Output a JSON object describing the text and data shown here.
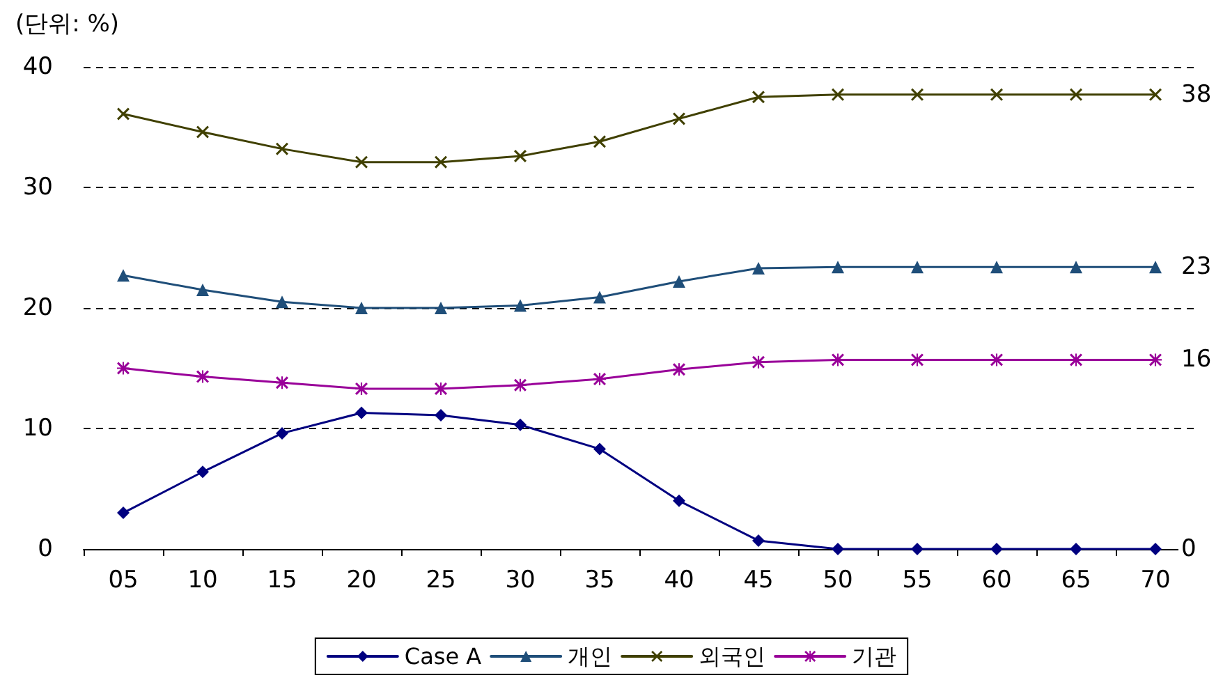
{
  "chart_data": {
    "type": "line",
    "ylabel": "(단위: %)",
    "categories": [
      "05",
      "10",
      "15",
      "20",
      "25",
      "30",
      "35",
      "40",
      "45",
      "50",
      "55",
      "60",
      "65",
      "70"
    ],
    "ylim": [
      0,
      40
    ],
    "yticks": [
      0,
      10,
      20,
      30,
      40
    ],
    "grid": "y",
    "legend": "bottom",
    "series": [
      {
        "name": "Case A",
        "color": "#000080",
        "marker": "diamond",
        "values": [
          3.0,
          6.4,
          9.6,
          11.3,
          11.1,
          10.3,
          8.3,
          4.0,
          0.7,
          0,
          0,
          0,
          0,
          0
        ],
        "value_labels": [
          null,
          null,
          null,
          null,
          null,
          null,
          null,
          null,
          null,
          null,
          null,
          null,
          null,
          "0"
        ]
      },
      {
        "name": "개인",
        "color": "#1f4e79",
        "marker": "triangle",
        "values": [
          22.7,
          21.5,
          20.5,
          20.0,
          20.0,
          20.2,
          20.9,
          22.2,
          23.3,
          23.4,
          23.4,
          23.4,
          23.4,
          23.4
        ],
        "value_labels": [
          null,
          null,
          null,
          null,
          null,
          null,
          null,
          null,
          null,
          null,
          null,
          null,
          null,
          "23"
        ]
      },
      {
        "name": "외국인",
        "color": "#404000",
        "marker": "cross",
        "values": [
          36.1,
          34.6,
          33.2,
          32.1,
          32.1,
          32.6,
          33.8,
          35.7,
          37.5,
          37.7,
          37.7,
          37.7,
          37.7,
          37.7
        ],
        "value_labels": [
          null,
          null,
          null,
          null,
          null,
          null,
          null,
          null,
          null,
          null,
          null,
          null,
          null,
          "38"
        ]
      },
      {
        "name": "기관",
        "color": "#990099",
        "marker": "star",
        "values": [
          15.0,
          14.3,
          13.8,
          13.3,
          13.3,
          13.6,
          14.1,
          14.9,
          15.5,
          15.7,
          15.7,
          15.7,
          15.7,
          15.7
        ],
        "value_labels": [
          null,
          null,
          null,
          null,
          null,
          null,
          null,
          null,
          null,
          null,
          null,
          null,
          null,
          "16"
        ]
      }
    ]
  }
}
